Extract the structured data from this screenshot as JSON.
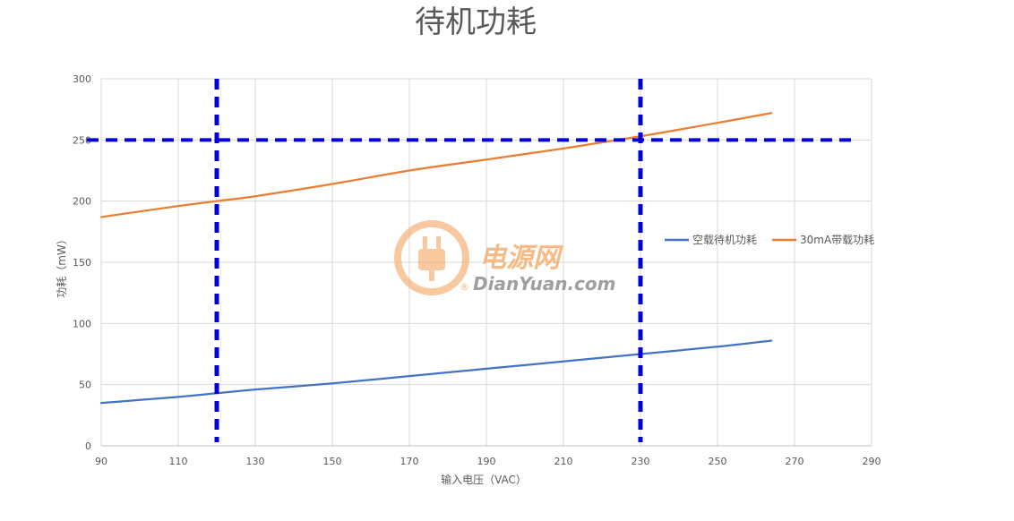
{
  "chart_data": {
    "type": "line",
    "title": "待机功耗",
    "xlabel": "输入电压（VAC）",
    "ylabel": "功耗（mW）",
    "xlim": [
      90,
      290
    ],
    "ylim": [
      0,
      300
    ],
    "x_ticks": [
      90,
      110,
      130,
      150,
      170,
      190,
      210,
      230,
      250,
      270,
      290
    ],
    "y_ticks": [
      0,
      50,
      100,
      150,
      200,
      250,
      300
    ],
    "grid": true,
    "legend_position": "right",
    "series": [
      {
        "name": "空载待机功耗",
        "color": "#4472c4",
        "x": [
          90,
          110,
          120,
          130,
          150,
          170,
          190,
          210,
          230,
          250,
          264
        ],
        "y": [
          35,
          40,
          43,
          46,
          51,
          57,
          63,
          69,
          75,
          81,
          86
        ]
      },
      {
        "name": "30mA带载功耗",
        "color": "#ed7d31",
        "x": [
          90,
          110,
          120,
          130,
          150,
          170,
          190,
          210,
          230,
          250,
          264
        ],
        "y": [
          187,
          196,
          200,
          204,
          214,
          225,
          234,
          243,
          253,
          264,
          272
        ]
      }
    ],
    "reference_lines": {
      "color": "#0000dd",
      "vertical_x": [
        120,
        230
      ],
      "horizontal_y": [
        250
      ]
    }
  },
  "watermark": {
    "text_cn": "电源网",
    "text_en": "DianYuan.com",
    "registered": "®",
    "icon": "plug-logo-icon",
    "color": "#f4a460"
  }
}
